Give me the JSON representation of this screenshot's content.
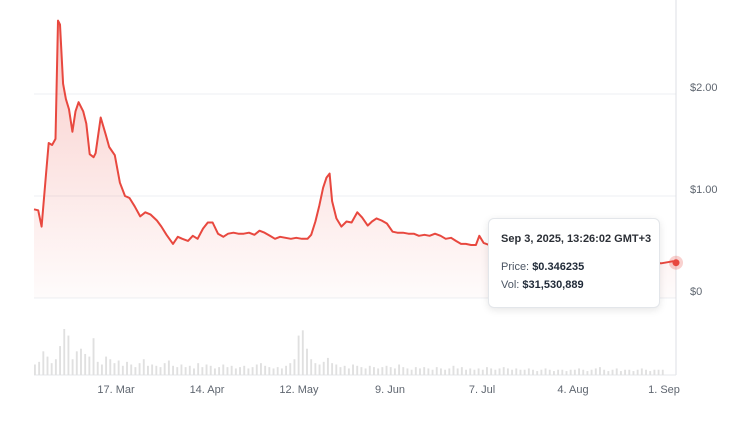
{
  "chart_data": {
    "type": "line",
    "title": "",
    "xlabel": "",
    "ylabel": "",
    "x_ticks": [
      "17. Mar",
      "14. Apr",
      "12. May",
      "9. Jun",
      "7. Jul",
      "4. Aug",
      "1. Sep"
    ],
    "y_ticks": [
      "$0",
      "$1.00",
      "$2.00"
    ],
    "ylim": [
      -0.2,
      2.95
    ],
    "grid": true,
    "colors": {
      "line": "#e8483f",
      "area": "#e8483f",
      "volume": "#e0e0e0",
      "grid": "#eceff3",
      "marker": "#e8483f"
    },
    "series": [
      {
        "values": [
          [
            0,
            0.87
          ],
          [
            1.5,
            0.86
          ],
          [
            2.7,
            0.7
          ],
          [
            4.2,
            1.2
          ],
          [
            5.2,
            1.52
          ],
          [
            6.4,
            1.5
          ],
          [
            7.6,
            1.56
          ],
          [
            8.5,
            2.72
          ],
          [
            9.2,
            2.68
          ],
          [
            10.3,
            2.1
          ],
          [
            11.3,
            1.95
          ],
          [
            12.4,
            1.85
          ],
          [
            13.6,
            1.63
          ],
          [
            14.7,
            1.83
          ],
          [
            15.8,
            1.92
          ],
          [
            17.4,
            1.83
          ],
          [
            18.5,
            1.71
          ],
          [
            19.7,
            1.41
          ],
          [
            21.1,
            1.38
          ],
          [
            21.8,
            1.42
          ],
          [
            23.6,
            1.77
          ],
          [
            25.4,
            1.6
          ],
          [
            26.6,
            1.48
          ],
          [
            28.6,
            1.4
          ],
          [
            30.4,
            1.13
          ],
          [
            32.2,
            1.0
          ],
          [
            33.8,
            0.98
          ],
          [
            35.6,
            0.9
          ],
          [
            37.6,
            0.8
          ],
          [
            39.4,
            0.84
          ],
          [
            41.2,
            0.82
          ],
          [
            43.5,
            0.76
          ],
          [
            45.1,
            0.7
          ],
          [
            46.9,
            0.62
          ],
          [
            49.2,
            0.53
          ],
          [
            50.9,
            0.6
          ],
          [
            52.5,
            0.58
          ],
          [
            54.5,
            0.56
          ],
          [
            56.2,
            0.61
          ],
          [
            57.9,
            0.58
          ],
          [
            59.8,
            0.68
          ],
          [
            61.5,
            0.74
          ],
          [
            63.2,
            0.74
          ],
          [
            65.1,
            0.63
          ],
          [
            67.0,
            0.6
          ],
          [
            68.7,
            0.63
          ],
          [
            70.6,
            0.64
          ],
          [
            72.3,
            0.63
          ],
          [
            74.2,
            0.63
          ],
          [
            76.1,
            0.64
          ],
          [
            78.0,
            0.62
          ],
          [
            79.8,
            0.66
          ],
          [
            81.6,
            0.64
          ],
          [
            83.5,
            0.61
          ],
          [
            85.3,
            0.58
          ],
          [
            87.1,
            0.6
          ],
          [
            89.0,
            0.59
          ],
          [
            90.9,
            0.58
          ],
          [
            92.8,
            0.59
          ],
          [
            94.8,
            0.58
          ],
          [
            96.8,
            0.58
          ],
          [
            98.1,
            0.62
          ],
          [
            99.6,
            0.75
          ],
          [
            101.0,
            0.91
          ],
          [
            102.3,
            1.08
          ],
          [
            103.5,
            1.18
          ],
          [
            104.6,
            1.22
          ],
          [
            105.5,
            0.95
          ],
          [
            107.0,
            0.78
          ],
          [
            108.8,
            0.7
          ],
          [
            110.6,
            0.75
          ],
          [
            112.4,
            0.74
          ],
          [
            114.4,
            0.84
          ],
          [
            116.1,
            0.79
          ],
          [
            118.1,
            0.71
          ],
          [
            119.6,
            0.75
          ],
          [
            121.2,
            0.78
          ],
          [
            123.0,
            0.76
          ],
          [
            124.9,
            0.73
          ],
          [
            126.9,
            0.65
          ],
          [
            128.6,
            0.64
          ],
          [
            130.6,
            0.64
          ],
          [
            132.5,
            0.63
          ],
          [
            134.4,
            0.63
          ],
          [
            136.2,
            0.61
          ],
          [
            138.2,
            0.62
          ],
          [
            140.0,
            0.61
          ],
          [
            141.9,
            0.63
          ],
          [
            143.9,
            0.61
          ],
          [
            145.7,
            0.58
          ],
          [
            147.6,
            0.59
          ],
          [
            149.3,
            0.56
          ],
          [
            151.1,
            0.53
          ],
          [
            152.8,
            0.53
          ],
          [
            154.7,
            0.52
          ],
          [
            156.4,
            0.52
          ],
          [
            157.6,
            0.61
          ],
          [
            159.1,
            0.54
          ],
          [
            161.1,
            0.52
          ],
          [
            162.6,
            0.5
          ],
          [
            164.4,
            0.46
          ],
          [
            166.3,
            0.46
          ],
          [
            168.0,
            0.45
          ],
          [
            170.0,
            0.44
          ],
          [
            171.9,
            0.43
          ],
          [
            174.0,
            0.43
          ],
          [
            176.0,
            0.42
          ],
          [
            178.0,
            0.42
          ],
          [
            180.0,
            0.41
          ],
          [
            182.0,
            0.41
          ],
          [
            184.0,
            0.4
          ],
          [
            186.0,
            0.4
          ],
          [
            188.0,
            0.39
          ],
          [
            190.0,
            0.39
          ],
          [
            192.0,
            0.38
          ],
          [
            194.0,
            0.38
          ],
          [
            196.0,
            0.37
          ],
          [
            198.0,
            0.37
          ],
          [
            200.0,
            0.37
          ],
          [
            202.0,
            0.36
          ],
          [
            204.0,
            0.36
          ],
          [
            206.0,
            0.36
          ],
          [
            208.0,
            0.36
          ],
          [
            210.0,
            0.35
          ],
          [
            212.0,
            0.35
          ],
          [
            214.0,
            0.35
          ],
          [
            216.0,
            0.35
          ],
          [
            218.0,
            0.35
          ],
          [
            220.0,
            0.34
          ],
          [
            222.0,
            0.34
          ],
          [
            224.0,
            0.35
          ],
          [
            226.0,
            0.36
          ],
          [
            227.2,
            0.346
          ]
        ]
      }
    ],
    "volume_bars": [
      8,
      10,
      18,
      14,
      9,
      12,
      22,
      35,
      30,
      12,
      18,
      20,
      16,
      14,
      28,
      10,
      8,
      14,
      12,
      9,
      11,
      7,
      10,
      8,
      6,
      9,
      12,
      7,
      8,
      7,
      6,
      9,
      11,
      7,
      6,
      8,
      6,
      7,
      5,
      9,
      6,
      8,
      7,
      5,
      6,
      8,
      6,
      7,
      5,
      6,
      7,
      5,
      6,
      8,
      9,
      7,
      6,
      5,
      6,
      5,
      7,
      9,
      12,
      30,
      34,
      20,
      12,
      9,
      8,
      10,
      13,
      9,
      8,
      6,
      7,
      5,
      8,
      7,
      6,
      5,
      7,
      6,
      5,
      6,
      7,
      6,
      5,
      8,
      6,
      5,
      4,
      6,
      5,
      6,
      5,
      4,
      6,
      5,
      4,
      5,
      7,
      5,
      6,
      4,
      5,
      4,
      5,
      4,
      6,
      5,
      4,
      5,
      6,
      5,
      4,
      5,
      4,
      4,
      5,
      4,
      3,
      4,
      5,
      4,
      3,
      4,
      4,
      3,
      4,
      4,
      5,
      4,
      3,
      4,
      5,
      6,
      4,
      3,
      4,
      5,
      3,
      4,
      4,
      3,
      4,
      5,
      4,
      3,
      4,
      4,
      4
    ],
    "tooltip": {
      "date": "Sep 3, 2025, 13:26:02 GMT+3",
      "price_label": "Price:",
      "price_value": "$0.346235",
      "vol_label": "Vol:",
      "vol_value": "$31,530,889"
    }
  }
}
